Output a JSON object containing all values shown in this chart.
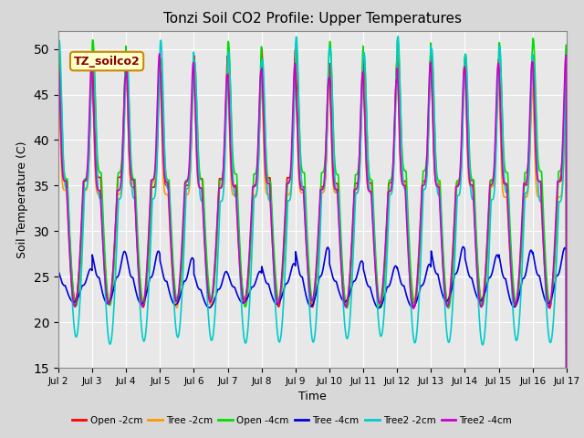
{
  "title": "Tonzi Soil CO2 Profile: Upper Temperatures",
  "xlabel": "Time",
  "ylabel": "Soil Temperature (C)",
  "ylim": [
    15,
    52
  ],
  "yticks": [
    15,
    20,
    25,
    30,
    35,
    40,
    45,
    50
  ],
  "date_labels": [
    "Jul 2",
    "Jul 3",
    "Jul 4",
    "Jul 5",
    "Jul 6",
    "Jul 7",
    "Jul 8",
    "Jul 9",
    "Jul 10",
    "Jul 11",
    "Jul 12",
    "Jul 13",
    "Jul 14",
    "Jul 15",
    "Jul 16",
    "Jul 17"
  ],
  "annotation_text": "TZ_soilco2",
  "series": [
    {
      "label": "Open -2cm",
      "color": "#ff0000",
      "lw": 1.2,
      "base_max": 49,
      "base_min": 22,
      "phase": 0.0,
      "sharpness": 8
    },
    {
      "label": "Tree -2cm",
      "color": "#ff9900",
      "lw": 1.2,
      "base_max": 47,
      "base_min": 22,
      "phase": 0.05,
      "sharpness": 8
    },
    {
      "label": "Open -4cm",
      "color": "#00dd00",
      "lw": 1.2,
      "base_max": 50,
      "base_min": 22,
      "phase": -0.1,
      "sharpness": 5
    },
    {
      "label": "Tree -4cm",
      "color": "#0000dd",
      "lw": 1.2,
      "base_max": 27,
      "base_min": 22,
      "phase": 0.3,
      "sharpness": 3
    },
    {
      "label": "Tree2 -2cm",
      "color": "#00cccc",
      "lw": 1.2,
      "base_max": 50,
      "base_min": 18,
      "phase": -0.15,
      "sharpness": 5
    },
    {
      "label": "Tree2 -4cm",
      "color": "#cc00cc",
      "lw": 1.2,
      "base_max": 48,
      "base_min": 22,
      "phase": 0.1,
      "sharpness": 6
    }
  ],
  "bg_color": "#d8d8d8",
  "plot_bg_color": "#e8e8e8",
  "grid_color": "#ffffff",
  "n_days": 15,
  "points_per_day": 144,
  "figsize": [
    6.4,
    4.8
  ],
  "dpi": 100
}
